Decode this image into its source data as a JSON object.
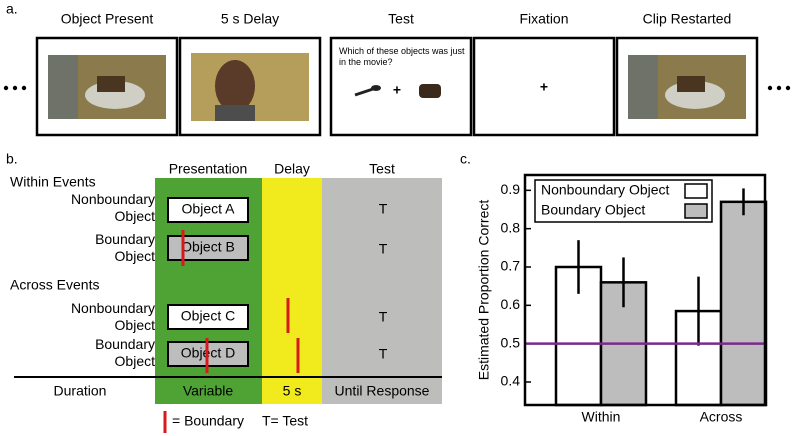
{
  "panel_a": {
    "label": "a.",
    "frames": [
      {
        "title": "Object Present"
      },
      {
        "title": "5 s Delay"
      },
      {
        "title": "Test",
        "question": "Which of these objects was just in the movie?",
        "content": "+"
      },
      {
        "title": "Fixation",
        "content": "+"
      },
      {
        "title": "Clip Restarted"
      }
    ]
  },
  "panel_b": {
    "label": "b.",
    "columns": [
      "Presentation",
      "Delay",
      "Test"
    ],
    "groups": [
      {
        "name": "Within Events",
        "rows": [
          {
            "label": "Nonboundary Object",
            "object": "Object A",
            "test": "T"
          },
          {
            "label": "Boundary Object",
            "object": "Object B",
            "test": "T"
          }
        ]
      },
      {
        "name": "Across Events",
        "rows": [
          {
            "label": "Nonboundary Object",
            "object": "Object C",
            "test": "T"
          },
          {
            "label": "Boundary Object",
            "object": "Object D",
            "test": "T"
          }
        ]
      }
    ],
    "duration": {
      "label": "Duration",
      "values": [
        "Variable",
        "5 s",
        "Until Response"
      ]
    },
    "legend": {
      "boundary": "= Boundary",
      "test": "T= Test"
    }
  },
  "chart_data": {
    "type": "bar",
    "label": "c.",
    "y_label": "Estimated Proportion Correct",
    "categories": [
      "Within",
      "Across"
    ],
    "series": [
      {
        "name": "Nonboundary Object",
        "color": "#ffffff",
        "values": [
          0.7,
          0.585
        ],
        "errors": [
          0.07,
          0.09
        ]
      },
      {
        "name": "Boundary Object",
        "color": "#bdbdbd",
        "values": [
          0.66,
          0.87
        ],
        "errors": [
          0.065,
          0.035
        ]
      }
    ],
    "ylim": [
      0.34,
      0.94
    ],
    "yticks": [
      0.4,
      0.5,
      0.6,
      0.7,
      0.8,
      0.9
    ],
    "reference_line": {
      "value": 0.5,
      "color": "#7b2a8c"
    },
    "legend": "upper left"
  }
}
